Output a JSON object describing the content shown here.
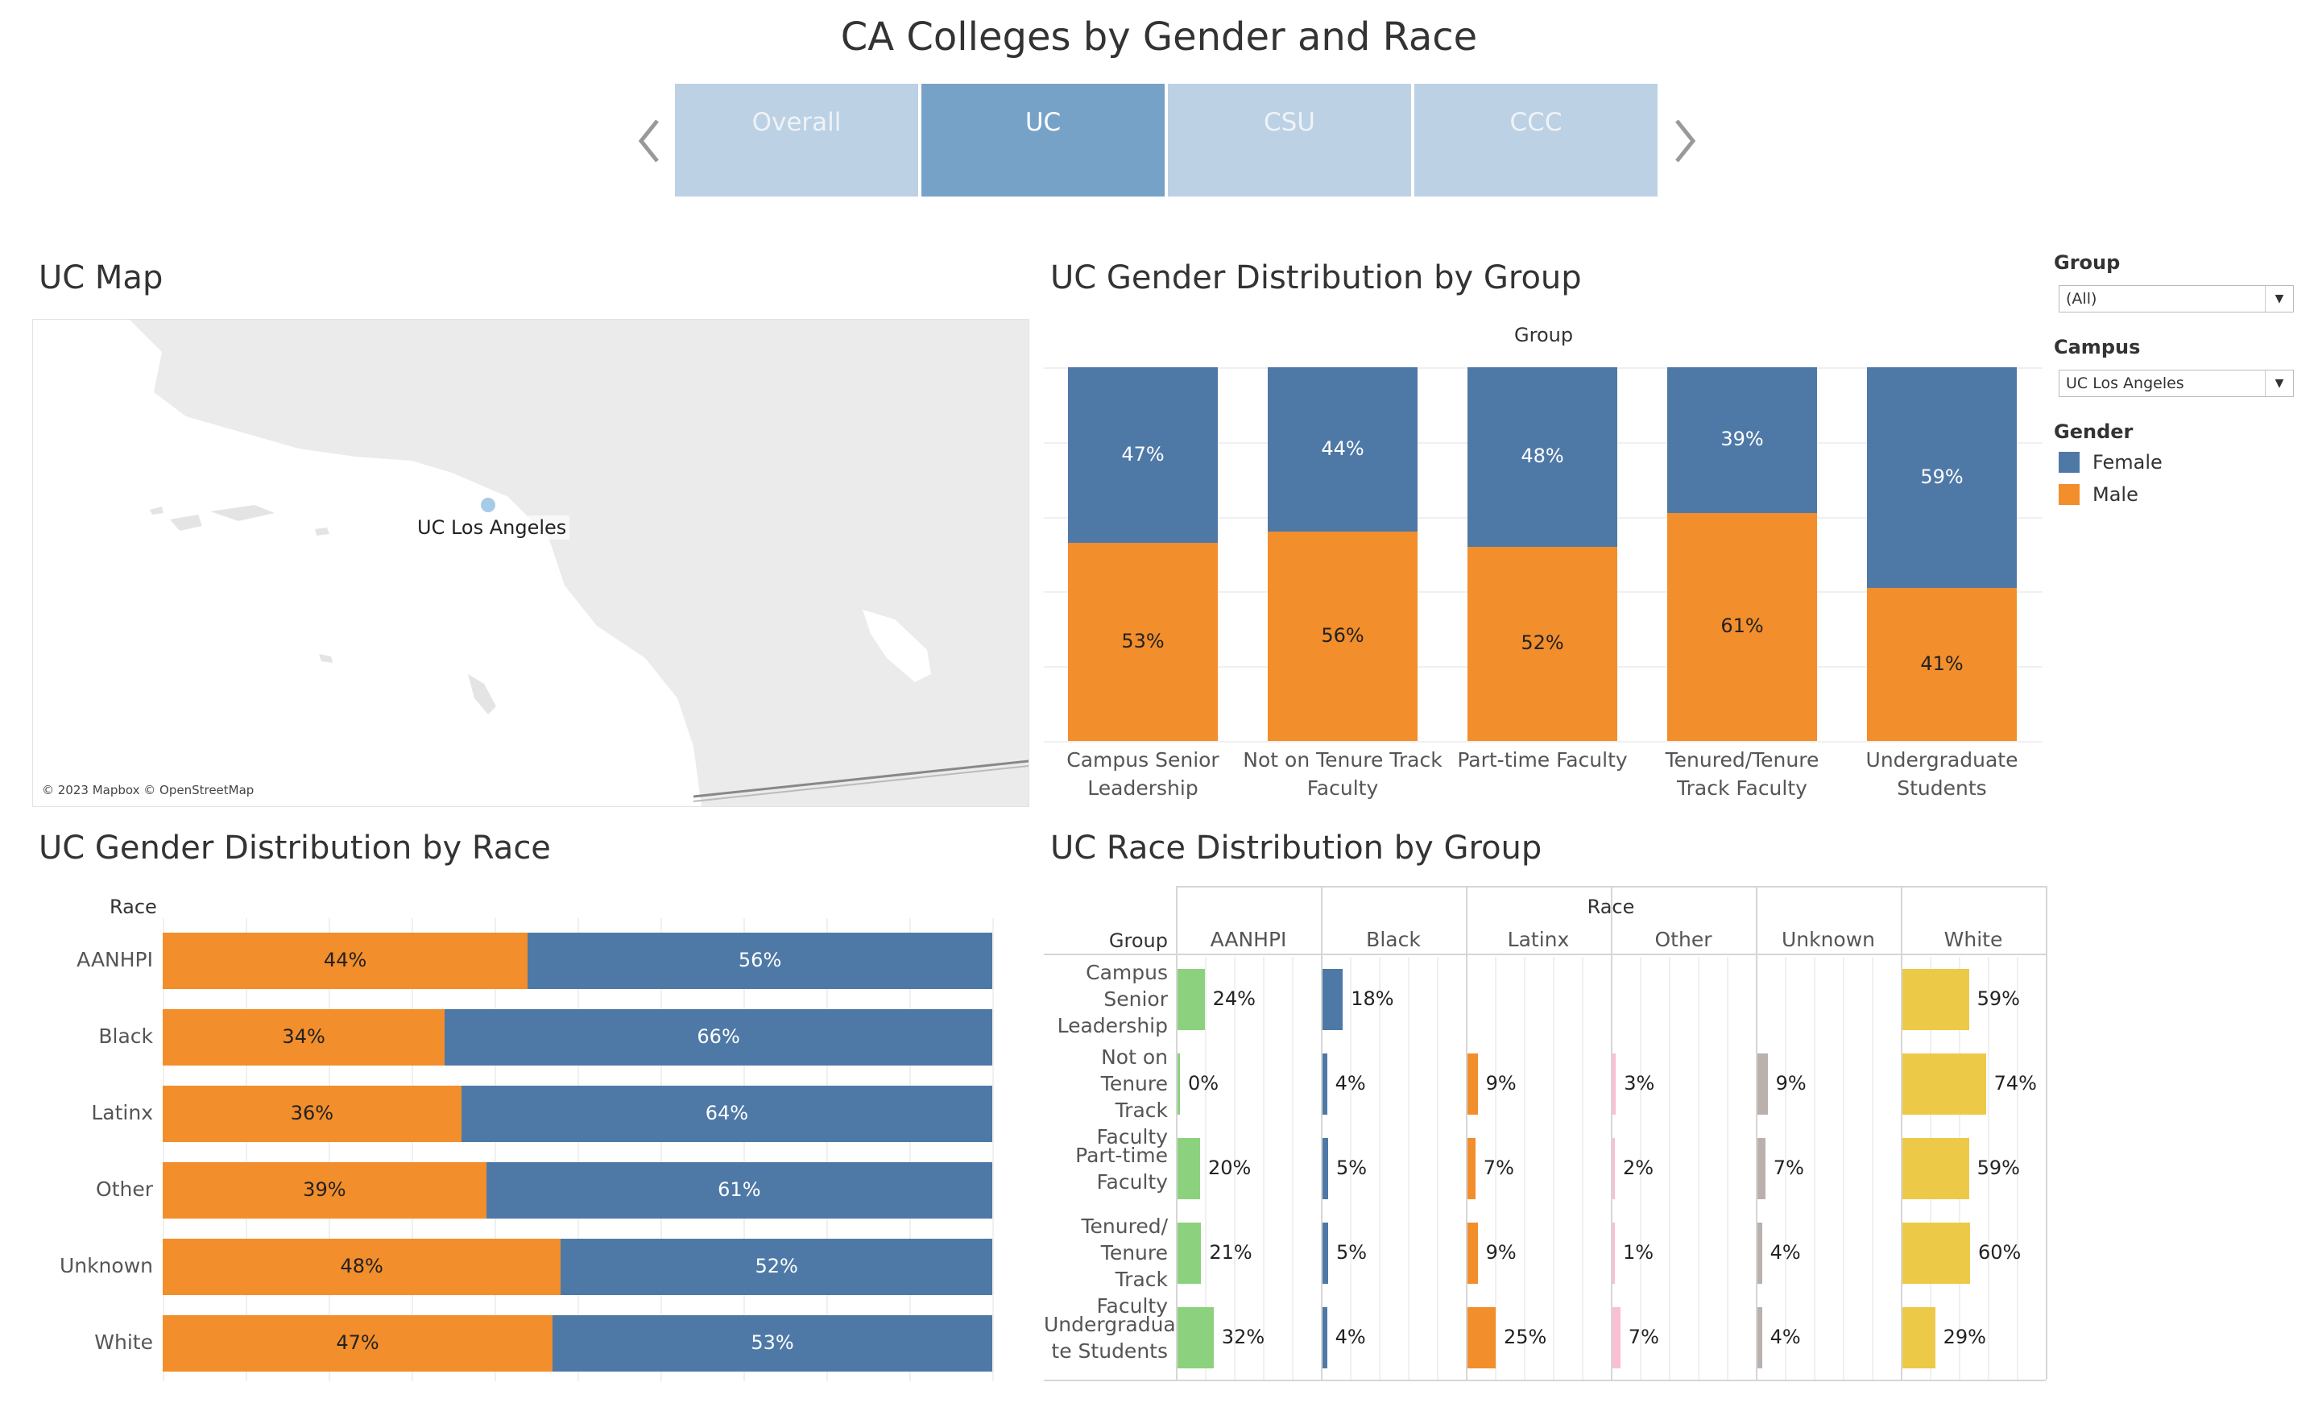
{
  "title": "CA Colleges by Gender and Race",
  "tabs": [
    {
      "label": "Overall",
      "active": false
    },
    {
      "label": "UC",
      "active": true
    },
    {
      "label": "CSU",
      "active": false
    },
    {
      "label": "CCC",
      "active": false
    }
  ],
  "map": {
    "title": "UC Map",
    "location_label": "UC Los Angeles",
    "credit": "© 2023 Mapbox © OpenStreetMap"
  },
  "filters": {
    "group": {
      "label": "Group",
      "value": "(All)"
    },
    "campus": {
      "label": "Campus",
      "value": "UC Los Angeles"
    },
    "gender": {
      "label": "Gender",
      "items": [
        {
          "label": "Female",
          "color": "#4e79a7"
        },
        {
          "label": "Male",
          "color": "#f28e2b"
        }
      ]
    }
  },
  "colors": {
    "female": "#4e79a7",
    "male": "#f28e2b",
    "aanhpi": "#8cd17d",
    "black": "#4e79a7",
    "latinx": "#f28e2b",
    "other": "#fabfd2",
    "unknown": "#bab0ac",
    "white": "#edc948"
  },
  "chart_data": [
    {
      "type": "bar",
      "title": "UC Gender Distribution by Group",
      "xlabel": "Group",
      "stacked": true,
      "categories": [
        "Campus Senior Leadership",
        "Not on Tenure Track Faculty",
        "Part-time Faculty",
        "Tenured/Tenure Track Faculty",
        "Undergraduate Students"
      ],
      "category_lines": [
        [
          "Campus Senior",
          "Leadership"
        ],
        [
          "Not on Tenure Track",
          "Faculty"
        ],
        [
          "Part-time Faculty"
        ],
        [
          "Tenured/Tenure",
          "Track Faculty"
        ],
        [
          "Undergraduate",
          "Students"
        ]
      ],
      "series": [
        {
          "name": "Female",
          "values": [
            47,
            44,
            48,
            39,
            59
          ],
          "labels": [
            "47%",
            "44%",
            "48%",
            "39%",
            "59%"
          ]
        },
        {
          "name": "Male",
          "values": [
            53,
            56,
            52,
            61,
            41
          ],
          "labels": [
            "53%",
            "56%",
            "52%",
            "61%",
            "41%"
          ]
        }
      ]
    },
    {
      "type": "bar",
      "orientation": "horizontal",
      "title": "UC Gender Distribution by Race",
      "ylabel": "Race",
      "stacked": true,
      "categories": [
        "AANHPI",
        "Black",
        "Latinx",
        "Other",
        "Unknown",
        "White"
      ],
      "series": [
        {
          "name": "Male",
          "values": [
            44,
            34,
            36,
            39,
            48,
            47
          ],
          "labels": [
            "44%",
            "34%",
            "36%",
            "39%",
            "48%",
            "47%"
          ]
        },
        {
          "name": "Female",
          "values": [
            56,
            66,
            64,
            61,
            52,
            53
          ],
          "labels": [
            "56%",
            "66%",
            "64%",
            "61%",
            "52%",
            "53%"
          ]
        }
      ]
    },
    {
      "type": "bar",
      "orientation": "horizontal",
      "title": "UC Race Distribution by Group",
      "column_header": "Race",
      "row_header": "Group",
      "columns": [
        "AANHPI",
        "Black",
        "Latinx",
        "Other",
        "Unknown",
        "White"
      ],
      "rows": [
        "Campus Senior Leadership",
        "Not on Tenure Track Faculty",
        "Part-time Faculty",
        "Tenured/ Tenure Track Faculty",
        "Undergraduate Students"
      ],
      "row_lines": [
        [
          "Campus",
          "Senior",
          "Leadership"
        ],
        [
          "Not on",
          "Tenure Track",
          "Faculty"
        ],
        [
          "Part-time",
          "Faculty"
        ],
        [
          "Tenured/",
          "Tenure Track",
          "Faculty"
        ],
        [
          "Undergradua",
          "te Students"
        ]
      ],
      "values": [
        [
          24,
          18,
          null,
          null,
          null,
          59
        ],
        [
          0,
          4,
          9,
          3,
          9,
          74
        ],
        [
          20,
          5,
          7,
          2,
          7,
          59
        ],
        [
          21,
          5,
          9,
          1,
          4,
          60
        ],
        [
          32,
          4,
          25,
          7,
          4,
          29
        ]
      ],
      "labels": [
        [
          "24%",
          "18%",
          "",
          "",
          "",
          "59%"
        ],
        [
          "0%",
          "4%",
          "9%",
          "3%",
          "9%",
          "74%"
        ],
        [
          "20%",
          "5%",
          "7%",
          "2%",
          "7%",
          "59%"
        ],
        [
          "21%",
          "5%",
          "9%",
          "1%",
          "4%",
          "60%"
        ],
        [
          "32%",
          "4%",
          "25%",
          "7%",
          "4%",
          "29%"
        ]
      ]
    }
  ]
}
